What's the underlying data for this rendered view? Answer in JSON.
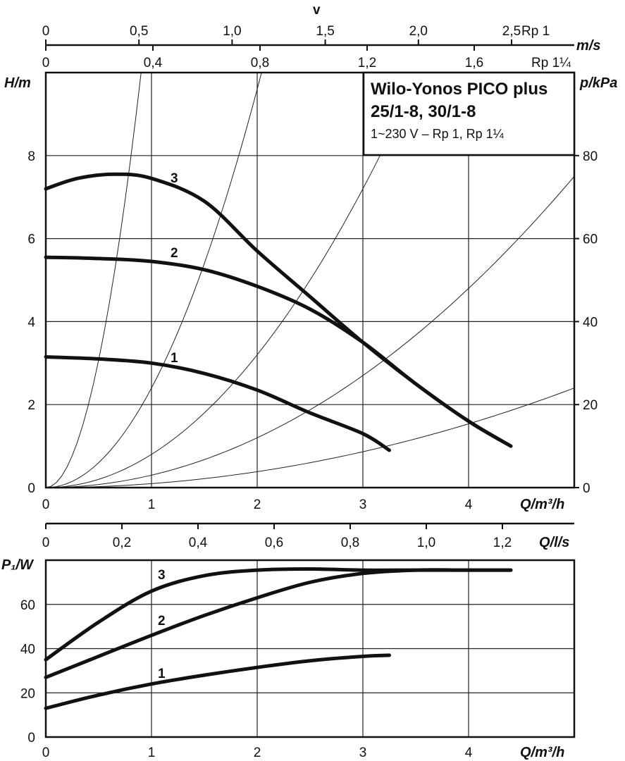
{
  "chart_data": [
    {
      "type": "line",
      "title": "Wilo-Yonos PICO plus",
      "subtitle": "25/1-8, 30/1-8",
      "note": "1~230 V – Rp 1, Rp 1¼",
      "xlabel": "Q/m³/h",
      "ylabel": "H/m",
      "y2label": "p/kPa",
      "xlim": [
        0,
        5
      ],
      "ylim": [
        0,
        10
      ],
      "y2lim": [
        0,
        100
      ],
      "xticks": [
        "0",
        "1",
        "2",
        "3",
        "4"
      ],
      "yticks": [
        "0",
        "2",
        "4",
        "6",
        "8"
      ],
      "y2ticks": [
        "0",
        "20",
        "40",
        "60",
        "80"
      ],
      "grid": true,
      "velocity_axes": {
        "label": "v",
        "unit": "m/s",
        "rp1": {
          "name": "Rp 1",
          "ticks": [
            "0",
            "0,5",
            "1,0",
            "1,5",
            "2,0",
            "2,5"
          ],
          "values": [
            0,
            0.5,
            1.0,
            1.5,
            2.0,
            2.5
          ]
        },
        "rp114": {
          "name": "Rp 1¼",
          "ticks": [
            "0",
            "0,4",
            "0,8",
            "1,2",
            "1,6"
          ],
          "values": [
            0,
            0.4,
            0.8,
            1.2,
            1.6
          ]
        }
      },
      "system_curves_k": [
        12.3,
        2.4,
        0.8,
        0.3,
        0.096
      ],
      "series": [
        {
          "name": "1",
          "x": [
            0,
            0.5,
            1,
            1.5,
            2,
            2.5,
            3,
            3.25
          ],
          "y": [
            3.15,
            3.1,
            3.0,
            2.75,
            2.35,
            1.8,
            1.3,
            0.9
          ]
        },
        {
          "name": "2",
          "x": [
            0,
            0.5,
            1,
            1.5,
            2,
            2.5,
            3,
            3.5,
            4,
            4.4
          ],
          "y": [
            5.55,
            5.52,
            5.45,
            5.25,
            4.85,
            4.3,
            3.5,
            2.5,
            1.6,
            1.0
          ]
        },
        {
          "name": "3",
          "x": [
            0,
            0.3,
            0.65,
            1,
            1.5,
            2,
            2.5,
            3,
            3.5,
            4,
            4.4
          ],
          "y": [
            7.2,
            7.45,
            7.55,
            7.45,
            6.9,
            5.7,
            4.6,
            3.5,
            2.5,
            1.6,
            1.0
          ]
        }
      ]
    },
    {
      "type": "line",
      "xlabel": "Q/m³/h",
      "x2label": "Q/l/s",
      "ylabel": "P₁/W",
      "xlim": [
        0,
        5
      ],
      "ylim": [
        0,
        80
      ],
      "xticks": [
        "0",
        "1",
        "2",
        "3",
        "4"
      ],
      "x2ticks": [
        "0",
        "0,2",
        "0,4",
        "0,6",
        "0,8",
        "1,0",
        "1,2"
      ],
      "x2values": [
        0,
        0.2,
        0.4,
        0.6,
        0.8,
        1.0,
        1.2
      ],
      "yticks": [
        "0",
        "20",
        "40",
        "60"
      ],
      "grid": true,
      "series": [
        {
          "name": "1",
          "x": [
            0,
            0.5,
            1,
            1.5,
            2,
            2.5,
            3,
            3.25
          ],
          "y": [
            13,
            19,
            24,
            28,
            31.5,
            34.5,
            36.5,
            37
          ]
        },
        {
          "name": "2",
          "x": [
            0,
            0.5,
            1,
            1.5,
            2,
            2.5,
            3,
            3.5,
            4,
            4.4
          ],
          "y": [
            27,
            36.5,
            46,
            55,
            63,
            70,
            74,
            75.5,
            75.5,
            75.5
          ]
        },
        {
          "name": "3",
          "x": [
            0,
            0.5,
            1,
            1.5,
            2,
            2.5,
            3,
            3.5,
            4,
            4.4
          ],
          "y": [
            35,
            52,
            66,
            73,
            75.5,
            76,
            75.5,
            75.5,
            75.5,
            75.5
          ]
        }
      ]
    }
  ]
}
